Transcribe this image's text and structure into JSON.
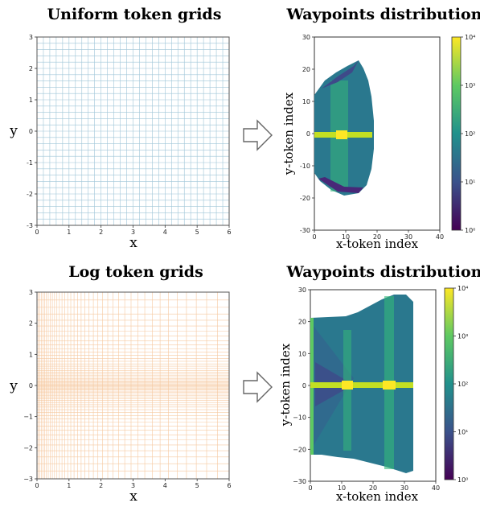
{
  "chart_data": [
    {
      "id": "uniform-grid",
      "type": "grid",
      "title": "Uniform token grids",
      "xlabel": "x",
      "ylabel": "y",
      "xlim": [
        0,
        6
      ],
      "ylim": [
        -3,
        3
      ],
      "xticks": [
        "0",
        "1",
        "2",
        "3",
        "4",
        "5",
        "6"
      ],
      "yticks": [
        "3",
        "2",
        "1",
        "0",
        "-1",
        "-2",
        "-3"
      ],
      "grid_color": "#9fc6d8",
      "x_lines": 30,
      "y_lines": 30
    },
    {
      "id": "uniform-heatmap",
      "type": "heatmap",
      "title": "Waypoints distribution",
      "xlabel": "x-token index",
      "ylabel": "y-token index",
      "xlim": [
        0,
        40
      ],
      "ylim": [
        -30,
        30
      ],
      "xticks": [
        "0",
        "10",
        "20",
        "30",
        "40"
      ],
      "yticks": [
        "30",
        "20",
        "10",
        "0",
        "-10",
        "-20",
        "-30"
      ],
      "colorbar_ticks": [
        "10⁴",
        "10³",
        "10²",
        "10¹",
        "10⁰"
      ],
      "colormap": "viridis"
    },
    {
      "id": "log-grid",
      "type": "grid",
      "title": "Log token grids",
      "xlabel": "x",
      "ylabel": "y",
      "xlim": [
        0,
        6
      ],
      "ylim": [
        -3,
        3
      ],
      "xticks": [
        "0",
        "1",
        "2",
        "3",
        "4",
        "5",
        "6"
      ],
      "yticks": [
        "3",
        "2",
        "1",
        "0",
        "−1",
        "−2",
        "−3"
      ],
      "grid_color": "#f6c9a0",
      "scale": "log"
    },
    {
      "id": "log-heatmap",
      "type": "heatmap",
      "title": "Waypoints distribution",
      "xlabel": "x-token index",
      "ylabel": "y-token index",
      "xlim": [
        0,
        40
      ],
      "ylim": [
        -30,
        30
      ],
      "xticks": [
        "0",
        "10",
        "20",
        "30",
        "40"
      ],
      "yticks": [
        "30",
        "20",
        "10",
        "0",
        "−10",
        "−20",
        "−30"
      ],
      "colorbar_ticks": [
        "10⁴",
        "10³",
        "10²",
        "10¹",
        "10⁰"
      ],
      "colormap": "viridis"
    }
  ],
  "arrow_icon": "right-arrow-icon"
}
